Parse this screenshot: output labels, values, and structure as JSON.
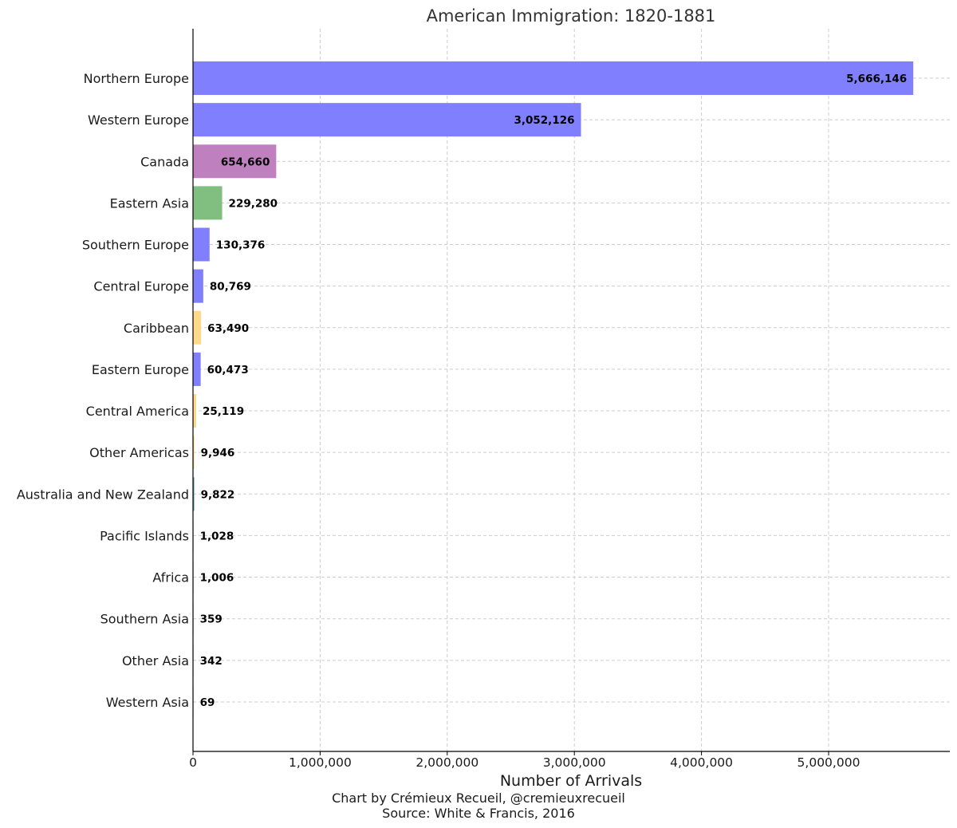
{
  "chart_data": {
    "type": "bar",
    "orientation": "horizontal",
    "title": "American Immigration: 1820-1881",
    "xlabel": "Number of Arrivals",
    "ylabel": "",
    "xlim": [
      0,
      5950000
    ],
    "xticks": [
      0,
      1000000,
      2000000,
      3000000,
      4000000,
      5000000
    ],
    "xtick_labels": [
      "0",
      "1,000,000",
      "2,000,000",
      "3,000,000",
      "4,000,000",
      "5,000,000"
    ],
    "grid": true,
    "categories": [
      "Northern Europe",
      "Western Europe",
      "Canada",
      "Eastern Asia",
      "Southern Europe",
      "Central Europe",
      "Caribbean",
      "Eastern Europe",
      "Central America",
      "Other Americas",
      "Australia and New Zealand",
      "Pacific Islands",
      "Africa",
      "Southern Asia",
      "Other Asia",
      "Western Asia"
    ],
    "values": [
      5666146,
      3052126,
      654660,
      229280,
      130376,
      80769,
      63490,
      60473,
      25119,
      9946,
      9822,
      1028,
      1006,
      359,
      342,
      69
    ],
    "value_labels": [
      "5,666,146",
      "3,052,126",
      "654,660",
      "229,280",
      "130,376",
      "80,769",
      "63,490",
      "60,473",
      "25,119",
      "9,946",
      "9,822",
      "1,028",
      "1,006",
      "359",
      "342",
      "69"
    ],
    "colors": [
      "#8080ff",
      "#8080ff",
      "#bf80bf",
      "#80bf80",
      "#8080ff",
      "#8080ff",
      "#ffd98a",
      "#8080ff",
      "#ffd98a",
      "#ffd98a",
      "#5fa0a0",
      "#80bf80",
      "#80bf80",
      "#80bf80",
      "#80bf80",
      "#80bf80"
    ],
    "credits": [
      "Chart by Crémieux Recueil, @cremieuxrecueil",
      "Source: White & Francis, 2016"
    ]
  }
}
